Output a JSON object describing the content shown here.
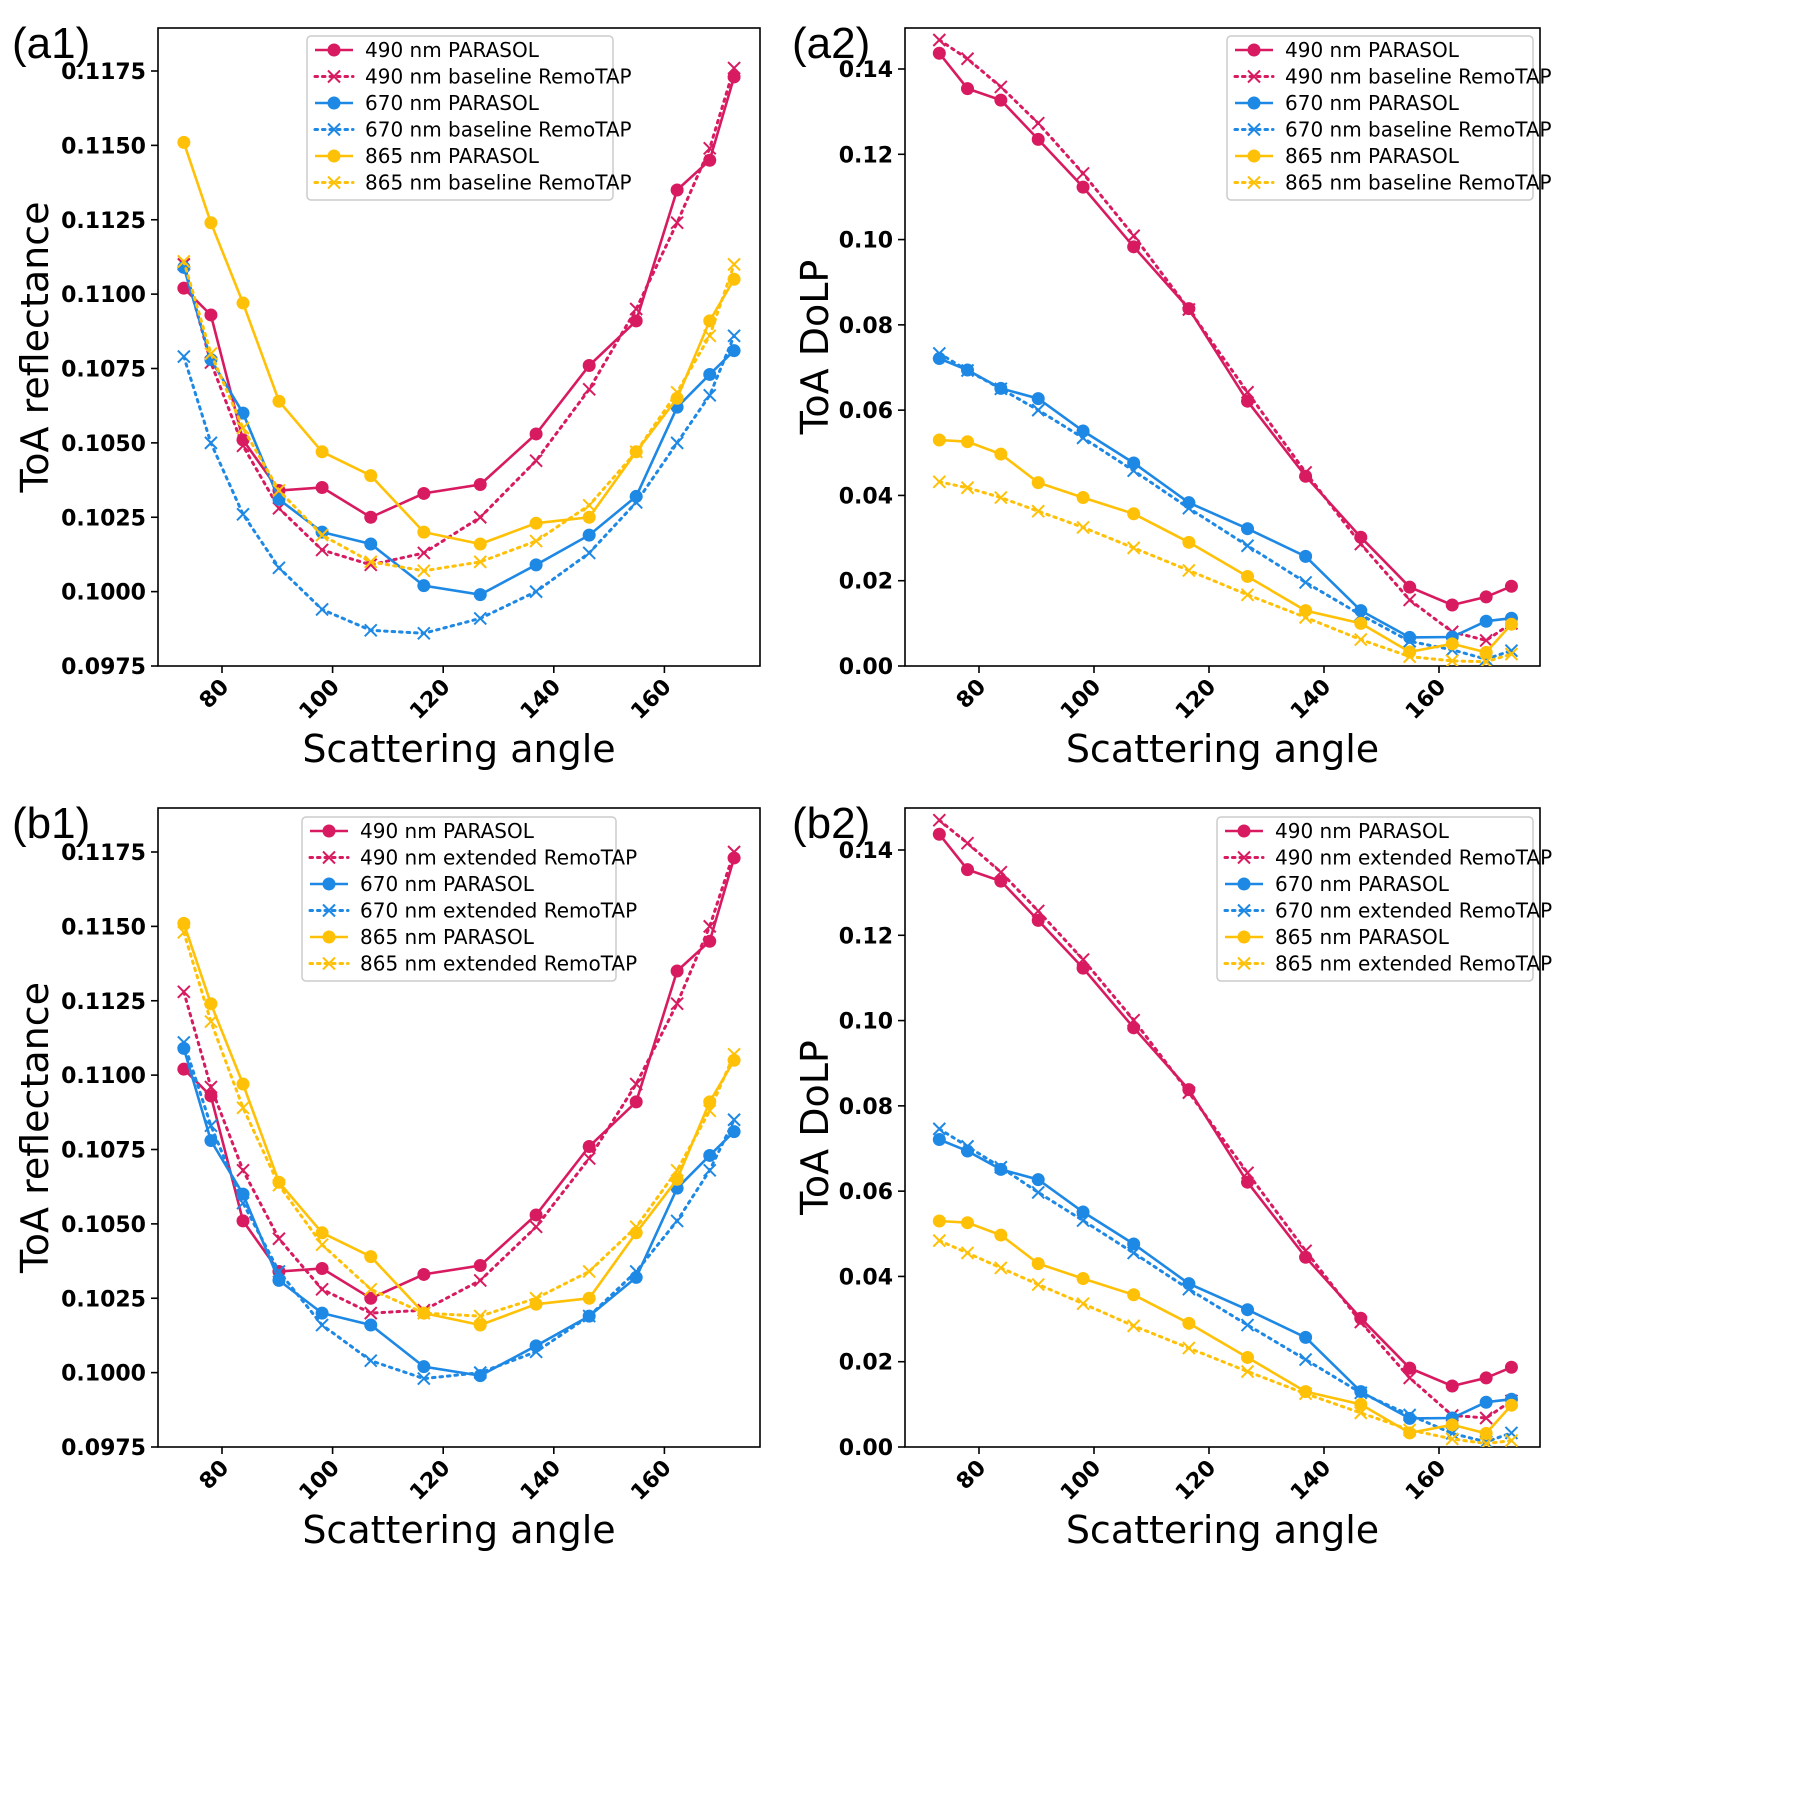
{
  "colors": {
    "c490": "#D81B60",
    "c670": "#1E88E5",
    "c865": "#FFC107",
    "axis": "#000000",
    "legend_border": "#CCCCCC"
  },
  "chart_data": [
    {
      "id": "a1",
      "type": "line",
      "panel_label": "(a1)",
      "xlabel": "Scattering angle",
      "ylabel": "ToA reflectance",
      "xlim": [
        68.4,
        177.3
      ],
      "ylim": [
        0.0975,
        0.119
      ],
      "xticks": [
        80,
        100,
        120,
        140,
        160
      ],
      "xtick_labels": [
        "80",
        "100",
        "120",
        "140",
        "160"
      ],
      "yticks": [
        0.0975,
        0.1,
        0.1025,
        0.105,
        0.1075,
        0.11,
        0.1125,
        0.115,
        0.1175
      ],
      "ytick_labels": [
        "0.0975",
        "0.1000",
        "0.1025",
        "0.1050",
        "0.1075",
        "0.1100",
        "0.1125",
        "0.1150",
        "0.1175"
      ],
      "legend_position": "top-center",
      "grid": false,
      "x": [
        73.1,
        78.0,
        83.8,
        90.3,
        98.1,
        106.9,
        116.5,
        126.7,
        136.8,
        146.4,
        154.9,
        162.3,
        168.2,
        172.6
      ],
      "series": [
        {
          "name": "490 nm PARASOL",
          "color_key": "c490",
          "style": "solid-dot",
          "values": [
            0.1102,
            0.1093,
            0.1051,
            0.1034,
            0.1035,
            0.1025,
            0.1033,
            0.1036,
            0.1053,
            0.1076,
            0.1091,
            0.1135,
            0.1145,
            0.1173
          ]
        },
        {
          "name": "490 nm baseline RemoTAP",
          "color_key": "c490",
          "style": "dotted-x",
          "values": [
            0.111,
            0.1077,
            0.1049,
            0.1028,
            0.1014,
            0.1009,
            0.1013,
            0.1025,
            0.1044,
            0.1068,
            0.1095,
            0.1124,
            0.1149,
            0.1176
          ]
        },
        {
          "name": "670 nm PARASOL",
          "color_key": "c670",
          "style": "solid-dot",
          "values": [
            0.1109,
            0.1078,
            0.106,
            0.1031,
            0.102,
            0.1016,
            0.1002,
            0.0999,
            0.1009,
            0.1019,
            0.1032,
            0.1062,
            0.1073,
            0.1081
          ]
        },
        {
          "name": "670 nm baseline RemoTAP",
          "color_key": "c670",
          "style": "dotted-x",
          "values": [
            0.1079,
            0.105,
            0.1026,
            0.1008,
            0.0994,
            0.0987,
            0.0986,
            0.0991,
            0.1,
            0.1013,
            0.103,
            0.105,
            0.1066,
            0.1086
          ]
        },
        {
          "name": "865 nm PARASOL",
          "color_key": "c865",
          "style": "solid-dot",
          "values": [
            0.1151,
            0.1124,
            0.1097,
            0.1064,
            0.1047,
            0.1039,
            0.102,
            0.1016,
            0.1023,
            0.1025,
            0.1047,
            0.1065,
            0.1091,
            0.1105
          ]
        },
        {
          "name": "865 nm baseline RemoTAP",
          "color_key": "c865",
          "style": "dotted-x",
          "values": [
            0.1111,
            0.108,
            0.1055,
            0.1034,
            0.1019,
            0.101,
            0.1007,
            0.101,
            0.1017,
            0.1029,
            0.1047,
            0.1067,
            0.1086,
            0.111
          ]
        }
      ]
    },
    {
      "id": "a2",
      "type": "line",
      "panel_label": "(a2)",
      "xlabel": "Scattering angle",
      "ylabel": "ToA DoLP",
      "xlim": [
        67.1,
        177.6
      ],
      "ylim": [
        0.0,
        0.15
      ],
      "xticks": [
        80,
        100,
        120,
        140,
        160
      ],
      "xtick_labels": [
        "80",
        "100",
        "120",
        "140",
        "160"
      ],
      "yticks": [
        0.0,
        0.02,
        0.04,
        0.06,
        0.08,
        0.1,
        0.12,
        0.14
      ],
      "ytick_labels": [
        "0.00",
        "0.02",
        "0.04",
        "0.06",
        "0.08",
        "0.10",
        "0.12",
        "0.14"
      ],
      "legend_position": "top-right",
      "grid": false,
      "x": [
        73.1,
        78.0,
        83.8,
        90.3,
        98.1,
        106.9,
        116.5,
        126.7,
        136.8,
        146.4,
        154.9,
        162.3,
        168.2,
        172.6
      ],
      "series": [
        {
          "name": "490 nm PARASOL",
          "color_key": "c490",
          "style": "solid-dot",
          "values": [
            0.1437,
            0.1354,
            0.1327,
            0.1235,
            0.1123,
            0.0983,
            0.0838,
            0.0621,
            0.0445,
            0.0302,
            0.0185,
            0.0143,
            0.0162,
            0.0187
          ]
        },
        {
          "name": "490 nm baseline RemoTAP",
          "color_key": "c490",
          "style": "dotted-x",
          "values": [
            0.1468,
            0.1424,
            0.1358,
            0.1273,
            0.1155,
            0.1009,
            0.0836,
            0.0642,
            0.0454,
            0.0286,
            0.0155,
            0.008,
            0.006,
            0.01
          ]
        },
        {
          "name": "670 nm PARASOL",
          "color_key": "c670",
          "style": "solid-dot",
          "values": [
            0.0721,
            0.0694,
            0.0651,
            0.0627,
            0.0551,
            0.0476,
            0.0383,
            0.0322,
            0.0257,
            0.013,
            0.0067,
            0.0068,
            0.0105,
            0.0112
          ]
        },
        {
          "name": "670 nm baseline RemoTAP",
          "color_key": "c670",
          "style": "dotted-x",
          "values": [
            0.0733,
            0.0693,
            0.065,
            0.06,
            0.0535,
            0.0458,
            0.037,
            0.0282,
            0.0196,
            0.012,
            0.0058,
            0.0038,
            0.0016,
            0.0036
          ]
        },
        {
          "name": "865 nm PARASOL",
          "color_key": "c865",
          "style": "solid-dot",
          "values": [
            0.053,
            0.0526,
            0.0497,
            0.043,
            0.0395,
            0.0357,
            0.029,
            0.021,
            0.013,
            0.01,
            0.0033,
            0.0052,
            0.0032,
            0.0098
          ]
        },
        {
          "name": "865 nm baseline RemoTAP",
          "color_key": "c865",
          "style": "dotted-x",
          "values": [
            0.0432,
            0.0418,
            0.0395,
            0.0363,
            0.0325,
            0.0277,
            0.0224,
            0.0167,
            0.0114,
            0.0062,
            0.0022,
            0.0012,
            0.001,
            0.0028
          ]
        }
      ]
    },
    {
      "id": "b1",
      "type": "line",
      "panel_label": "(b1)",
      "xlabel": "Scattering angle",
      "ylabel": "ToA reflectance",
      "xlim": [
        68.4,
        177.3
      ],
      "ylim": [
        0.0975,
        0.119
      ],
      "xticks": [
        80,
        100,
        120,
        140,
        160
      ],
      "xtick_labels": [
        "80",
        "100",
        "120",
        "140",
        "160"
      ],
      "yticks": [
        0.0975,
        0.1,
        0.1025,
        0.105,
        0.1075,
        0.11,
        0.1125,
        0.115,
        0.1175
      ],
      "ytick_labels": [
        "0.0975",
        "0.1000",
        "0.1025",
        "0.1050",
        "0.1075",
        "0.1100",
        "0.1125",
        "0.1150",
        "0.1175"
      ],
      "legend_position": "top-center",
      "grid": false,
      "x": [
        73.1,
        78.0,
        83.8,
        90.3,
        98.1,
        106.9,
        116.5,
        126.7,
        136.8,
        146.4,
        154.9,
        162.3,
        168.2,
        172.6
      ],
      "series": [
        {
          "name": "490 nm PARASOL",
          "color_key": "c490",
          "style": "solid-dot",
          "values": [
            0.1102,
            0.1093,
            0.1051,
            0.1034,
            0.1035,
            0.1025,
            0.1033,
            0.1036,
            0.1053,
            0.1076,
            0.1091,
            0.1135,
            0.1145,
            0.1173
          ]
        },
        {
          "name": "490 nm extended RemoTAP",
          "color_key": "c490",
          "style": "dotted-x",
          "values": [
            0.1128,
            0.1096,
            0.1068,
            0.1045,
            0.1028,
            0.102,
            0.1021,
            0.1031,
            0.1049,
            0.1072,
            0.1097,
            0.1124,
            0.115,
            0.1175
          ]
        },
        {
          "name": "670 nm PARASOL",
          "color_key": "c670",
          "style": "solid-dot",
          "values": [
            0.1109,
            0.1078,
            0.106,
            0.1031,
            0.102,
            0.1016,
            0.1002,
            0.0999,
            0.1009,
            0.1019,
            0.1032,
            0.1062,
            0.1073,
            0.1081
          ]
        },
        {
          "name": "670 nm extended RemoTAP",
          "color_key": "c670",
          "style": "dotted-x",
          "values": [
            0.1111,
            0.1083,
            0.1057,
            0.1034,
            0.1016,
            0.1004,
            0.0998,
            0.1,
            0.1007,
            0.1019,
            0.1034,
            0.1051,
            0.1068,
            0.1085
          ]
        },
        {
          "name": "865 nm PARASOL",
          "color_key": "c865",
          "style": "solid-dot",
          "values": [
            0.1151,
            0.1124,
            0.1097,
            0.1064,
            0.1047,
            0.1039,
            0.102,
            0.1016,
            0.1023,
            0.1025,
            0.1047,
            0.1065,
            0.1091,
            0.1105
          ]
        },
        {
          "name": "865 nm extended RemoTAP",
          "color_key": "c865",
          "style": "dotted-x",
          "values": [
            0.1148,
            0.1118,
            0.1089,
            0.1063,
            0.1043,
            0.1028,
            0.102,
            0.1019,
            0.1025,
            0.1034,
            0.1049,
            0.1068,
            0.1088,
            0.1107
          ]
        }
      ]
    },
    {
      "id": "b2",
      "type": "line",
      "panel_label": "(b2)",
      "xlabel": "Scattering angle",
      "ylabel": "ToA DoLP",
      "xlim": [
        67.1,
        177.6
      ],
      "ylim": [
        0.0,
        0.15
      ],
      "xticks": [
        80,
        100,
        120,
        140,
        160
      ],
      "xtick_labels": [
        "80",
        "100",
        "120",
        "140",
        "160"
      ],
      "yticks": [
        0.0,
        0.02,
        0.04,
        0.06,
        0.08,
        0.1,
        0.12,
        0.14
      ],
      "ytick_labels": [
        "0.00",
        "0.02",
        "0.04",
        "0.06",
        "0.08",
        "0.10",
        "0.12",
        "0.14"
      ],
      "legend_position": "top-right",
      "grid": false,
      "x": [
        73.1,
        78.0,
        83.8,
        90.3,
        98.1,
        106.9,
        116.5,
        126.7,
        136.8,
        146.4,
        154.9,
        162.3,
        168.2,
        172.6
      ],
      "series": [
        {
          "name": "490 nm PARASOL",
          "color_key": "c490",
          "style": "solid-dot",
          "values": [
            0.1437,
            0.1354,
            0.1327,
            0.1235,
            0.1123,
            0.0983,
            0.0838,
            0.0621,
            0.0445,
            0.0302,
            0.0185,
            0.0143,
            0.0162,
            0.0187
          ]
        },
        {
          "name": "490 nm extended RemoTAP",
          "color_key": "c490",
          "style": "dotted-x",
          "values": [
            0.147,
            0.1416,
            0.1348,
            0.1257,
            0.1143,
            0.1001,
            0.0831,
            0.0643,
            0.046,
            0.0293,
            0.0162,
            0.0074,
            0.0068,
            0.0108
          ]
        },
        {
          "name": "670 nm PARASOL",
          "color_key": "c670",
          "style": "solid-dot",
          "values": [
            0.0721,
            0.0694,
            0.0651,
            0.0627,
            0.0551,
            0.0476,
            0.0383,
            0.0322,
            0.0257,
            0.013,
            0.0067,
            0.0068,
            0.0105,
            0.0112
          ]
        },
        {
          "name": "670 nm extended RemoTAP",
          "color_key": "c670",
          "style": "dotted-x",
          "values": [
            0.0746,
            0.0705,
            0.0656,
            0.0597,
            0.0531,
            0.0455,
            0.037,
            0.0286,
            0.0205,
            0.0127,
            0.0075,
            0.0032,
            0.0012,
            0.0033
          ]
        },
        {
          "name": "865 nm PARASOL",
          "color_key": "c865",
          "style": "solid-dot",
          "values": [
            0.053,
            0.0526,
            0.0497,
            0.043,
            0.0395,
            0.0357,
            0.029,
            0.021,
            0.013,
            0.01,
            0.0033,
            0.0052,
            0.0032,
            0.0098
          ]
        },
        {
          "name": "865 nm extended RemoTAP",
          "color_key": "c865",
          "style": "dotted-x",
          "values": [
            0.0484,
            0.0455,
            0.042,
            0.0381,
            0.0336,
            0.0284,
            0.0232,
            0.0177,
            0.0125,
            0.008,
            0.004,
            0.0019,
            0.0008,
            0.0015
          ]
        }
      ]
    }
  ]
}
